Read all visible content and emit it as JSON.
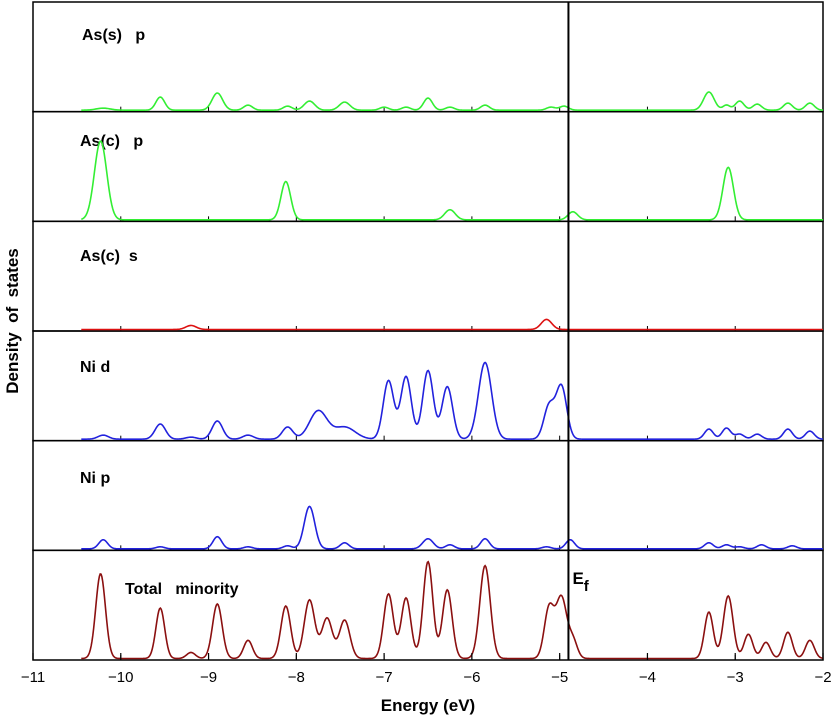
{
  "chart_data": {
    "type": "line",
    "xlabel": "Energy  (eV)",
    "ylabel": "Density  of  states",
    "xlim": [
      -11,
      -2
    ],
    "xticks": [
      -11,
      -10,
      -9,
      -8,
      -7,
      -6,
      -5,
      -4,
      -3,
      -2
    ],
    "xtick_labels": [
      "−11",
      "−10",
      "−9",
      "−8",
      "−7",
      "−6",
      "−5",
      "−4",
      "−3",
      "−2"
    ],
    "fermi_level": {
      "x": -4.9,
      "label": "E",
      "subscript": "f"
    },
    "panels": [
      {
        "label": "As(s)   p",
        "color": "#33ee33",
        "ymax": 1,
        "peaks": [
          [
            -10.2,
            0.02,
            0.08
          ],
          [
            -9.55,
            0.13,
            0.05
          ],
          [
            -8.9,
            0.17,
            0.06
          ],
          [
            -8.55,
            0.05,
            0.05
          ],
          [
            -8.1,
            0.04,
            0.05
          ],
          [
            -7.85,
            0.09,
            0.06
          ],
          [
            -7.45,
            0.08,
            0.06
          ],
          [
            -7.0,
            0.03,
            0.05
          ],
          [
            -6.75,
            0.03,
            0.05
          ],
          [
            -6.5,
            0.12,
            0.05
          ],
          [
            -6.25,
            0.03,
            0.05
          ],
          [
            -5.85,
            0.05,
            0.05
          ],
          [
            -5.1,
            0.03,
            0.05
          ],
          [
            -4.95,
            0.04,
            0.05
          ],
          [
            -3.3,
            0.18,
            0.06
          ],
          [
            -3.1,
            0.05,
            0.04
          ],
          [
            -2.95,
            0.09,
            0.05
          ],
          [
            -2.75,
            0.06,
            0.05
          ],
          [
            -2.4,
            0.07,
            0.05
          ],
          [
            -2.15,
            0.07,
            0.05
          ]
        ],
        "xrange": [
          -10.45,
          -2.0
        ]
      },
      {
        "label": "As(c)   p",
        "color": "#33ee33",
        "ymax": 1,
        "peaks": [
          [
            -10.23,
            0.78,
            0.07
          ],
          [
            -8.12,
            0.38,
            0.055
          ],
          [
            -6.25,
            0.1,
            0.06
          ],
          [
            -4.85,
            0.08,
            0.055
          ],
          [
            -3.08,
            0.52,
            0.06
          ]
        ],
        "xrange": [
          -10.45,
          -2.0
        ]
      },
      {
        "label": "As(c)  s",
        "color": "#dd1111",
        "ymax": 1,
        "peaks": [
          [
            -9.2,
            0.04,
            0.06
          ],
          [
            -5.15,
            0.1,
            0.06
          ]
        ],
        "xrange": [
          -10.45,
          -2.0
        ]
      },
      {
        "label": "Ni d",
        "color": "#2222dd",
        "ymax": 1,
        "peaks": [
          [
            -10.2,
            0.04,
            0.06
          ],
          [
            -9.55,
            0.15,
            0.06
          ],
          [
            -9.2,
            0.02,
            0.06
          ],
          [
            -8.9,
            0.18,
            0.06
          ],
          [
            -8.55,
            0.04,
            0.06
          ],
          [
            -8.1,
            0.12,
            0.06
          ],
          [
            -7.75,
            0.28,
            0.1
          ],
          [
            -7.45,
            0.12,
            0.12
          ],
          [
            -6.95,
            0.58,
            0.06
          ],
          [
            -6.75,
            0.62,
            0.06
          ],
          [
            -6.5,
            0.68,
            0.06
          ],
          [
            -6.28,
            0.52,
            0.06
          ],
          [
            -5.85,
            0.76,
            0.075
          ],
          [
            -5.12,
            0.33,
            0.06
          ],
          [
            -4.98,
            0.52,
            0.06
          ],
          [
            -3.3,
            0.1,
            0.05
          ],
          [
            -3.1,
            0.11,
            0.05
          ],
          [
            -2.95,
            0.05,
            0.05
          ],
          [
            -2.75,
            0.05,
            0.05
          ],
          [
            -2.4,
            0.1,
            0.05
          ],
          [
            -2.15,
            0.08,
            0.05
          ]
        ],
        "xrange": [
          -10.45,
          -2.0
        ]
      },
      {
        "label": "Ni p",
        "color": "#2222dd",
        "ymax": 1,
        "peaks": [
          [
            -10.2,
            0.09,
            0.05
          ],
          [
            -9.55,
            0.02,
            0.05
          ],
          [
            -8.9,
            0.12,
            0.05
          ],
          [
            -8.55,
            0.02,
            0.05
          ],
          [
            -8.1,
            0.03,
            0.05
          ],
          [
            -7.85,
            0.42,
            0.06
          ],
          [
            -7.45,
            0.06,
            0.05
          ],
          [
            -6.5,
            0.1,
            0.06
          ],
          [
            -6.25,
            0.04,
            0.05
          ],
          [
            -5.85,
            0.1,
            0.05
          ],
          [
            -5.15,
            0.02,
            0.05
          ],
          [
            -4.88,
            0.09,
            0.05
          ],
          [
            -3.3,
            0.06,
            0.05
          ],
          [
            -3.1,
            0.04,
            0.05
          ],
          [
            -2.95,
            0.02,
            0.05
          ],
          [
            -2.7,
            0.04,
            0.05
          ],
          [
            -2.35,
            0.03,
            0.05
          ]
        ],
        "xrange": [
          -10.45,
          -2.0
        ]
      },
      {
        "label": "Total   minority",
        "color": "#8b1010",
        "ymax": 1,
        "peaks": [
          [
            -10.23,
            0.84,
            0.055
          ],
          [
            -9.55,
            0.5,
            0.05
          ],
          [
            -9.2,
            0.06,
            0.05
          ],
          [
            -8.9,
            0.54,
            0.055
          ],
          [
            -8.55,
            0.18,
            0.05
          ],
          [
            -8.12,
            0.52,
            0.055
          ],
          [
            -7.85,
            0.58,
            0.06
          ],
          [
            -7.65,
            0.4,
            0.06
          ],
          [
            -7.45,
            0.38,
            0.06
          ],
          [
            -6.95,
            0.64,
            0.055
          ],
          [
            -6.75,
            0.6,
            0.055
          ],
          [
            -6.5,
            0.96,
            0.055
          ],
          [
            -6.28,
            0.68,
            0.055
          ],
          [
            -5.85,
            0.92,
            0.06
          ],
          [
            -5.12,
            0.5,
            0.055
          ],
          [
            -4.98,
            0.6,
            0.06
          ],
          [
            -4.85,
            0.18,
            0.05
          ],
          [
            -3.3,
            0.46,
            0.05
          ],
          [
            -3.08,
            0.62,
            0.055
          ],
          [
            -2.85,
            0.24,
            0.05
          ],
          [
            -2.65,
            0.16,
            0.05
          ],
          [
            -2.4,
            0.26,
            0.05
          ],
          [
            -2.15,
            0.18,
            0.05
          ]
        ],
        "xrange": [
          -10.45,
          -2.0
        ]
      }
    ]
  }
}
